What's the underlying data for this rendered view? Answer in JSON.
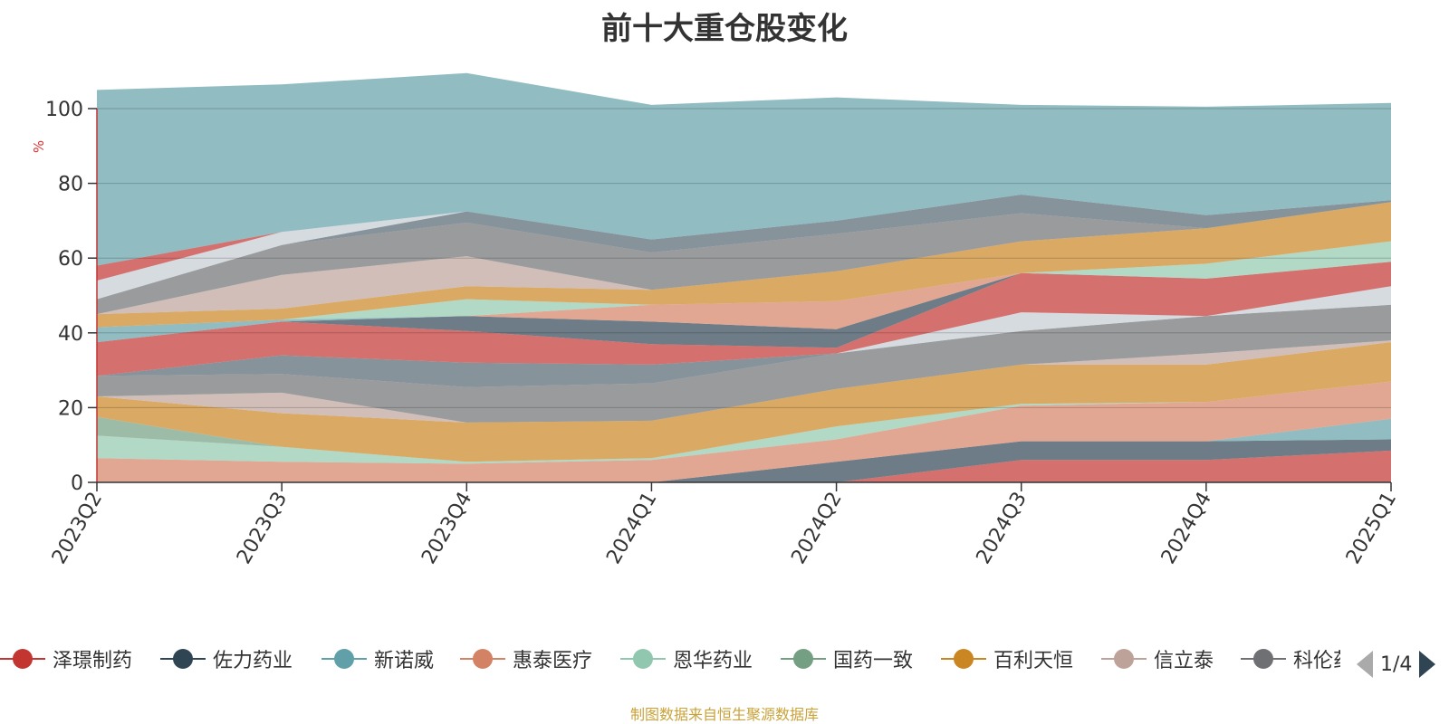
{
  "chart_data": {
    "type": "area",
    "title": "前十大重仓股变化",
    "ylabel": "%",
    "ylim": [
      0,
      100
    ],
    "yticks": [
      0,
      20,
      40,
      60,
      80,
      100
    ],
    "grid": true,
    "legend_position": "bottom",
    "categories": [
      "2023Q2",
      "2023Q3",
      "2023Q4",
      "2024Q1",
      "2024Q2",
      "2024Q3",
      "2024Q4",
      "2025Q1"
    ],
    "series": [
      {
        "name": "泽璟制药",
        "color": "#c23531",
        "values": [
          null,
          null,
          null,
          null,
          0,
          6,
          6,
          8.5
        ]
      },
      {
        "name": "佐力药业",
        "color": "#2f4554",
        "values": [
          null,
          null,
          null,
          0,
          5.5,
          5,
          5,
          3
        ]
      },
      {
        "name": "新诺威",
        "color": "#61a0a8",
        "values": [
          null,
          null,
          null,
          null,
          null,
          null,
          null,
          5.5
        ]
      },
      {
        "name": "惠泰医疗",
        "color": "#d48265",
        "values": [
          6.5,
          5.5,
          5,
          6,
          6,
          9.5,
          10.5,
          10
        ]
      },
      {
        "name": "恩华药业",
        "color": "#91c7ae",
        "values": [
          6,
          4,
          0.5,
          0.5,
          3.5,
          0.5,
          null,
          null
        ]
      },
      {
        "name": "国药一致",
        "color": "#749f83",
        "values": [
          5,
          null,
          null,
          null,
          null,
          null,
          null,
          null
        ]
      },
      {
        "name": "百利天恒",
        "color": "#ca8622",
        "values": [
          5.5,
          9,
          10.5,
          10,
          10,
          10.5,
          10,
          10.5
        ]
      },
      {
        "name": "信立泰",
        "color": "#bda29a",
        "values": [
          null,
          5.5,
          0,
          0,
          0,
          0,
          3,
          0.5
        ]
      },
      {
        "name": "科伦药业",
        "color": "#6e7074",
        "values": [
          5.5,
          5,
          9.5,
          10,
          9.5,
          9,
          10,
          9.5
        ]
      },
      {
        "name": "",
        "color": "#546570",
        "values": [
          null,
          5,
          6.5,
          5,
          null,
          null,
          null,
          null
        ]
      },
      {
        "name": "",
        "color": "#c4ccd3",
        "values": [
          null,
          null,
          null,
          null,
          null,
          5,
          0,
          5
        ]
      },
      {
        "name": "",
        "color": "#c23531",
        "values": [
          9,
          9,
          8.5,
          5.5,
          1.5,
          10.5,
          10,
          6.5
        ]
      },
      {
        "name": "",
        "color": "#2f4554",
        "values": [
          null,
          null,
          4,
          6,
          5,
          null,
          null,
          null
        ]
      },
      {
        "name": "",
        "color": "#61a0a8",
        "values": [
          4,
          0.5,
          null,
          null,
          null,
          null,
          null,
          null
        ]
      },
      {
        "name": "",
        "color": "#d48265",
        "values": [
          null,
          null,
          0,
          4.5,
          7.5,
          0,
          null,
          null
        ]
      },
      {
        "name": "",
        "color": "#91c7ae",
        "values": [
          null,
          null,
          4.5,
          0,
          null,
          null,
          4,
          5.5
        ]
      },
      {
        "name": "",
        "color": "#ca8622",
        "values": [
          3.5,
          3,
          3.5,
          4,
          8,
          8.5,
          9.5,
          10.5
        ]
      },
      {
        "name": "",
        "color": "#bda29a",
        "values": [
          null,
          9,
          8,
          null,
          null,
          null,
          null,
          null
        ]
      },
      {
        "name": "",
        "color": "#6e7074",
        "values": [
          4,
          8,
          9,
          10,
          10,
          7.5,
          0,
          0
        ]
      },
      {
        "name": "",
        "color": "#546570",
        "values": [
          null,
          null,
          3,
          3.5,
          3.5,
          5,
          3.5,
          0.5
        ]
      },
      {
        "name": "",
        "color": "#c4ccd3",
        "values": [
          5,
          3.5,
          null,
          null,
          null,
          null,
          null,
          null
        ]
      },
      {
        "name": "",
        "color": "#c23531",
        "values": [
          4,
          null,
          null,
          null,
          null,
          null,
          null,
          null
        ]
      },
      {
        "name": "",
        "color": "#61a0a8",
        "values": [
          47,
          39.5,
          37,
          36,
          33,
          24,
          29,
          26
        ]
      }
    ]
  },
  "legend": {
    "items": [
      {
        "label": "泽璟制药",
        "color": "#c23531"
      },
      {
        "label": "佐力药业",
        "color": "#2f4554"
      },
      {
        "label": "新诺威",
        "color": "#61a0a8"
      },
      {
        "label": "惠泰医疗",
        "color": "#d48265"
      },
      {
        "label": "恩华药业",
        "color": "#91c7ae"
      },
      {
        "label": "国药一致",
        "color": "#749f83"
      },
      {
        "label": "百利天恒",
        "color": "#ca8622"
      },
      {
        "label": "信立泰",
        "color": "#bda29a"
      },
      {
        "label": "科伦药业",
        "color": "#6e7074"
      }
    ],
    "pager": {
      "text": "1/4",
      "prev_icon": "triangle-left-icon",
      "next_icon": "triangle-right-icon"
    }
  },
  "source_note": "制图数据来自恒生聚源数据库"
}
